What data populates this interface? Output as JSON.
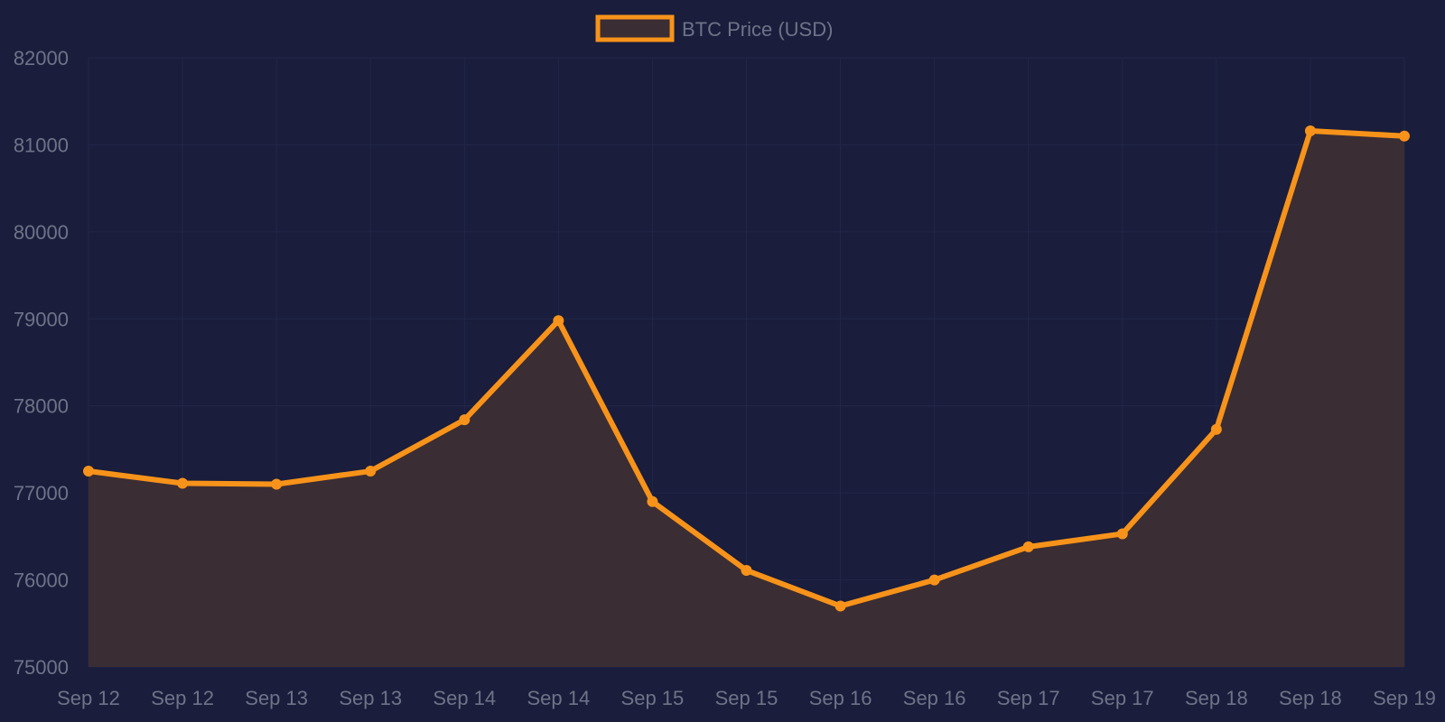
{
  "colors": {
    "background": "#1a1d3b",
    "line": "#f7931a",
    "fill": "#3b2d34",
    "grid": "#22264a",
    "text": "#6f7388"
  },
  "chart_data": {
    "type": "area",
    "title": "",
    "xlabel": "",
    "ylabel": "",
    "categories": [
      "Sep 12",
      "Sep 12",
      "Sep 13",
      "Sep 13",
      "Sep 14",
      "Sep 14",
      "Sep 15",
      "Sep 15",
      "Sep 16",
      "Sep 16",
      "Sep 17",
      "Sep 17",
      "Sep 18",
      "Sep 18",
      "Sep 19"
    ],
    "series": [
      {
        "name": "BTC Price (USD)",
        "values": [
          77250,
          77110,
          77100,
          77250,
          77840,
          78980,
          76900,
          76110,
          75700,
          76000,
          76380,
          76530,
          77730,
          81160,
          81100
        ]
      }
    ],
    "ylim": [
      75000,
      82000
    ],
    "yticks": [
      82000,
      81000,
      80000,
      79000,
      78000,
      77000,
      76000,
      75000
    ],
    "grid": true,
    "legend": "top-center"
  }
}
